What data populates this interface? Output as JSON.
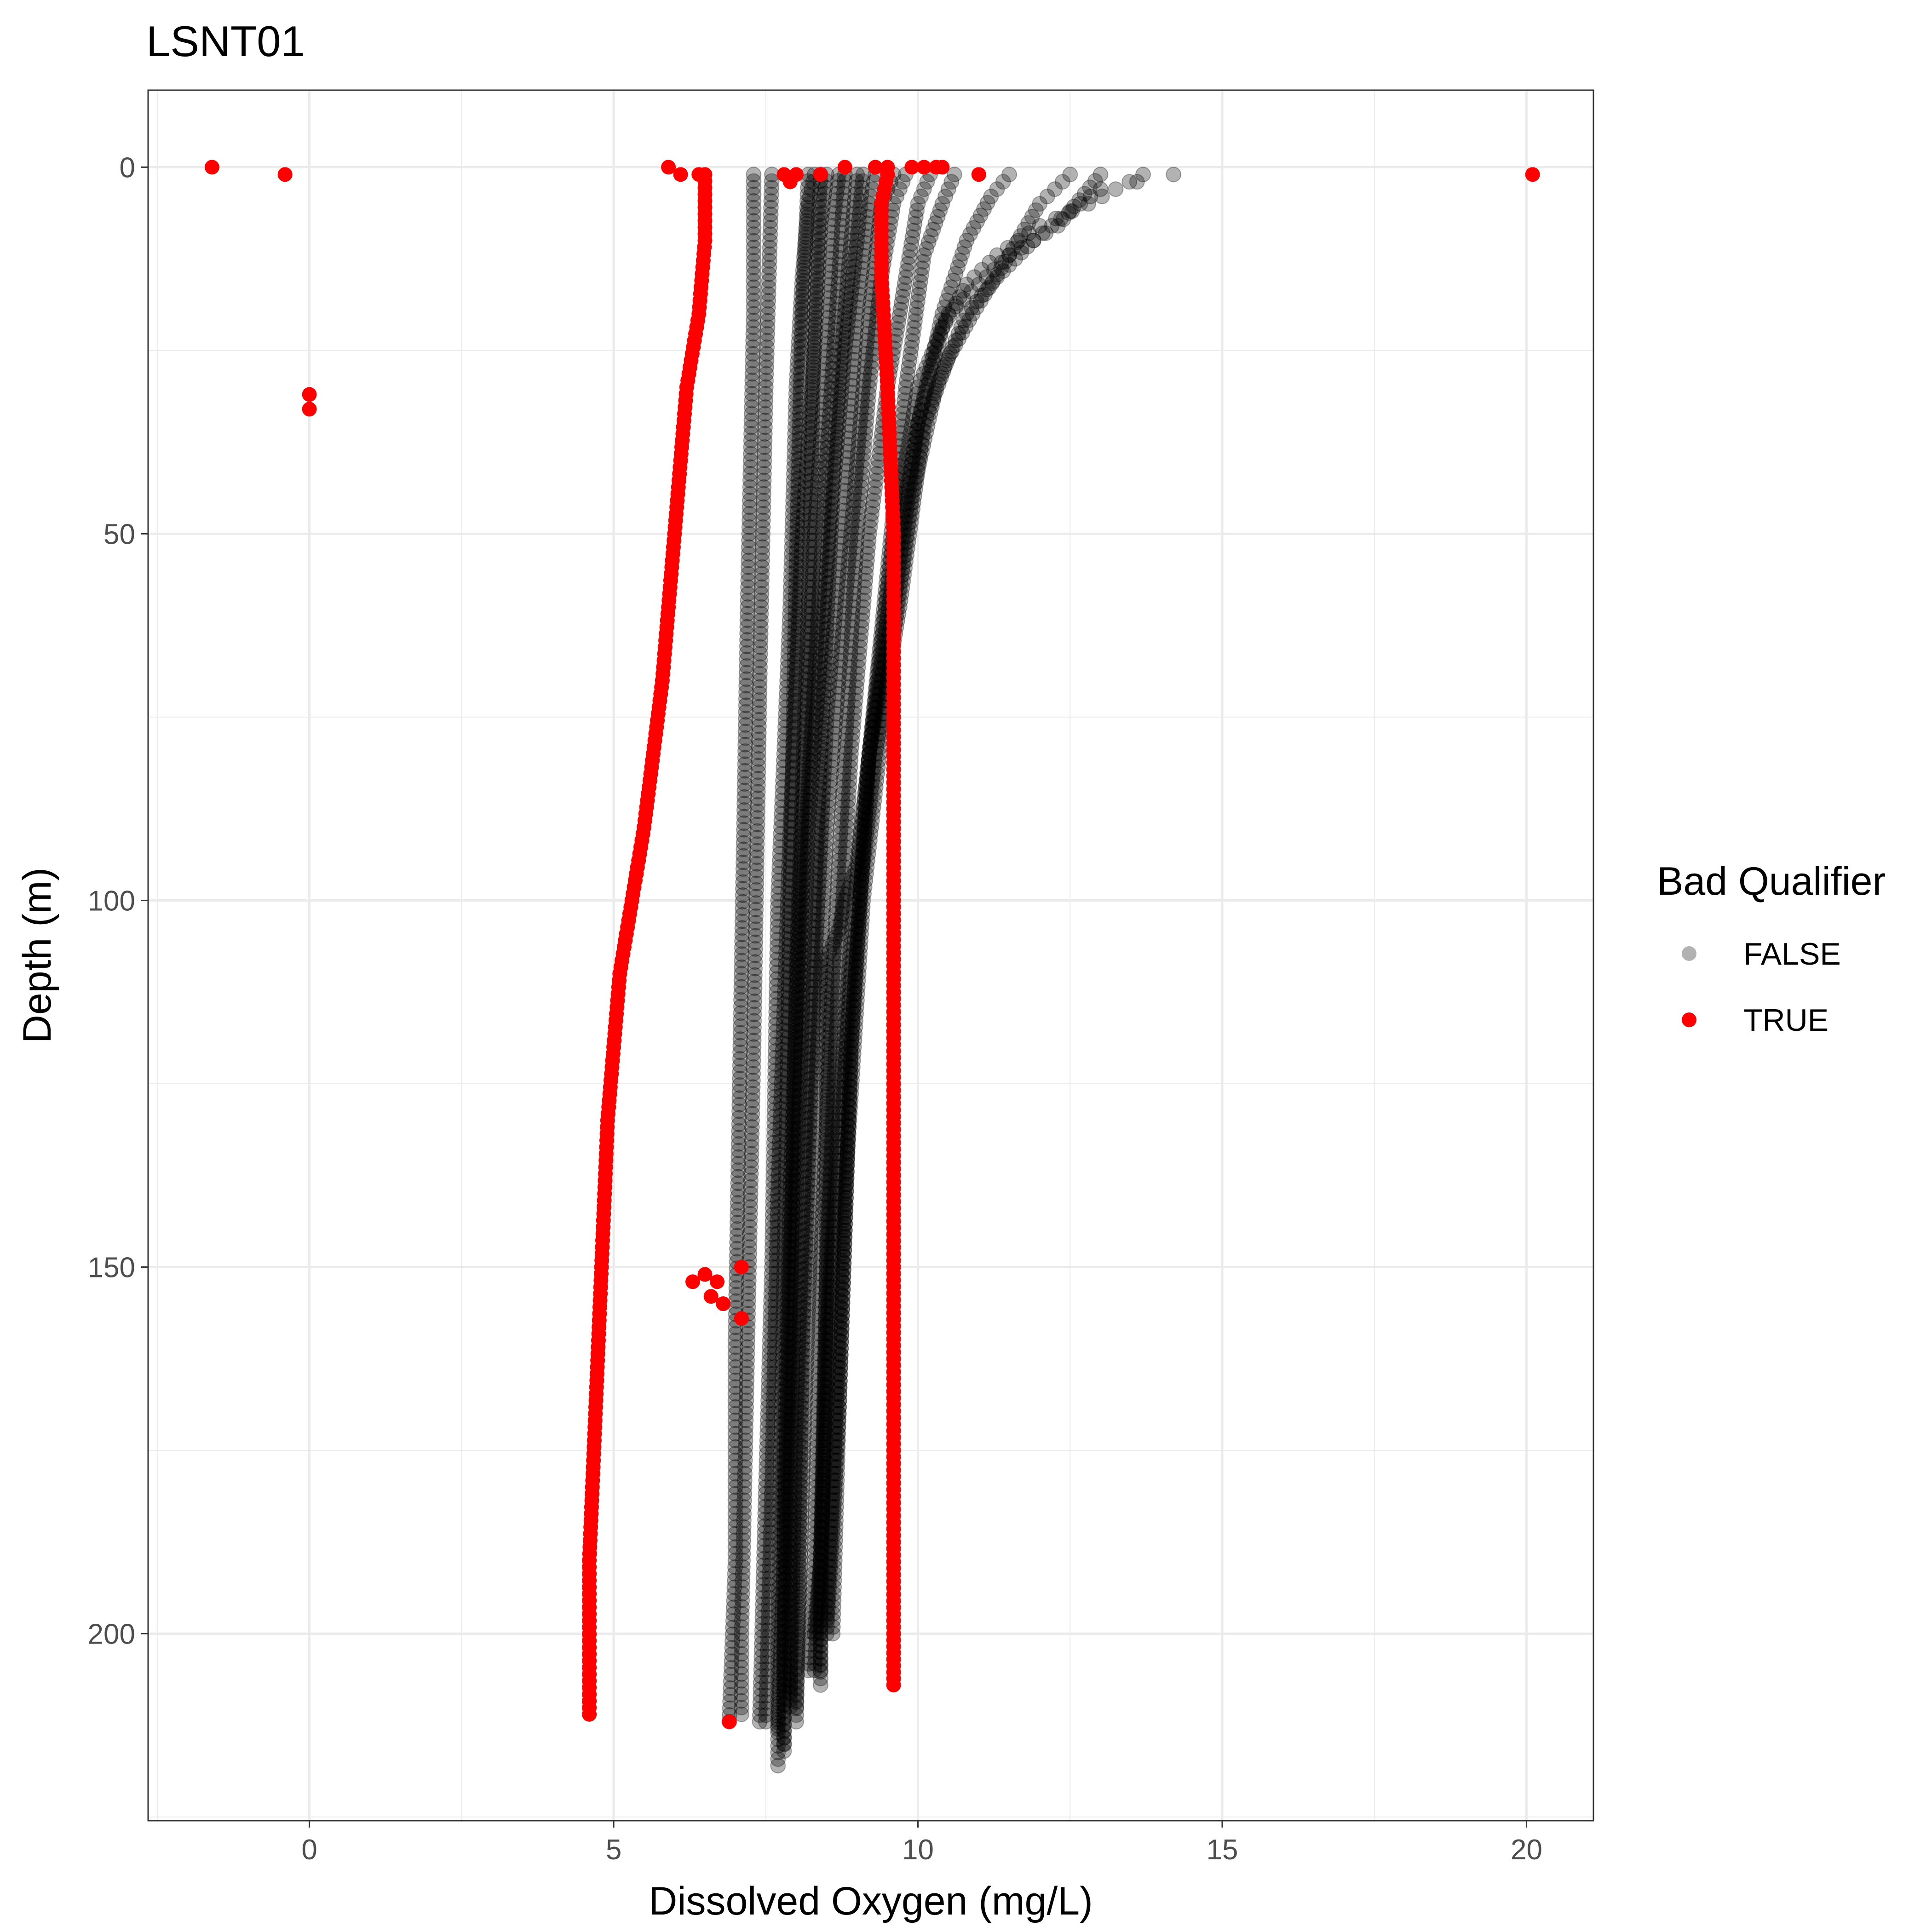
{
  "chart_data": {
    "type": "scatter",
    "title": "LSNT01",
    "xlabel": "Dissolved Oxygen (mg/L)",
    "ylabel": "Depth (m)",
    "xlim": [
      -2.65,
      21.1
    ],
    "ylim": [
      225.5,
      -10.5
    ],
    "y_reversed": true,
    "x_ticks": [
      0,
      5,
      10,
      15,
      20
    ],
    "x_tick_labels": [
      "0",
      "5",
      "10",
      "15",
      "20"
    ],
    "y_ticks": [
      0,
      50,
      100,
      150,
      200
    ],
    "y_tick_labels": [
      "0",
      "50",
      "100",
      "150",
      "200"
    ],
    "grid": true,
    "legend": {
      "title": "Bad Qualifier",
      "placement": "right",
      "entries": [
        {
          "label": "FALSE",
          "color": "#000000",
          "opacity": 0.3
        },
        {
          "label": "TRUE",
          "color": "#ff0000",
          "opacity": 1.0
        }
      ]
    },
    "colors": {
      "false": "#000000",
      "true": "#ff0000"
    },
    "series": [
      {
        "name": "FALSE",
        "profiles": [
          [
            [
              8.3,
              1
            ],
            [
              8.2,
              5
            ],
            [
              8.1,
              15
            ],
            [
              8.0,
              30
            ],
            [
              7.9,
              60
            ],
            [
              7.7,
              100
            ],
            [
              7.6,
              150
            ],
            [
              7.5,
              180
            ],
            [
              7.4,
              212
            ]
          ],
          [
            [
              8.5,
              1
            ],
            [
              8.4,
              8
            ],
            [
              8.3,
              25
            ],
            [
              8.1,
              50
            ],
            [
              7.9,
              90
            ],
            [
              7.7,
              140
            ],
            [
              7.6,
              180
            ],
            [
              7.5,
              212
            ]
          ],
          [
            [
              8.7,
              1
            ],
            [
              8.6,
              8
            ],
            [
              8.5,
              25
            ],
            [
              8.3,
              50
            ],
            [
              8.1,
              90
            ],
            [
              7.9,
              140
            ],
            [
              7.8,
              180
            ],
            [
              7.8,
              215
            ]
          ],
          [
            [
              8.8,
              1
            ],
            [
              8.7,
              15
            ],
            [
              8.5,
              40
            ],
            [
              8.3,
              70
            ],
            [
              8.1,
              100
            ],
            [
              7.9,
              150
            ],
            [
              7.8,
              190
            ],
            [
              7.7,
              213
            ]
          ],
          [
            [
              9.0,
              1
            ],
            [
              8.9,
              10
            ],
            [
              8.7,
              30
            ],
            [
              8.5,
              55
            ],
            [
              8.2,
              90
            ],
            [
              8.0,
              140
            ],
            [
              7.9,
              180
            ],
            [
              7.9,
              210
            ]
          ],
          [
            [
              9.1,
              1
            ],
            [
              9.0,
              10
            ],
            [
              8.8,
              25
            ],
            [
              8.6,
              45
            ],
            [
              8.4,
              80
            ],
            [
              8.2,
              120
            ],
            [
              8.0,
              170
            ],
            [
              7.9,
              208
            ]
          ],
          [
            [
              9.3,
              1
            ],
            [
              9.2,
              5
            ],
            [
              9.0,
              20
            ],
            [
              8.8,
              45
            ],
            [
              8.5,
              75
            ],
            [
              8.3,
              110
            ],
            [
              8.1,
              160
            ],
            [
              8.0,
              212
            ]
          ],
          [
            [
              9.6,
              1
            ],
            [
              9.4,
              5
            ],
            [
              9.2,
              20
            ],
            [
              9.0,
              40
            ],
            [
              8.8,
              60
            ],
            [
              8.5,
              90
            ],
            [
              8.3,
              130
            ],
            [
              8.1,
              180
            ],
            [
              8.0,
              210
            ]
          ],
          [
            [
              9.8,
              1
            ],
            [
              9.6,
              5
            ],
            [
              9.4,
              15
            ],
            [
              9.2,
              30
            ],
            [
              9.0,
              50
            ],
            [
              8.8,
              80
            ],
            [
              8.6,
              110
            ],
            [
              8.4,
              150
            ],
            [
              8.3,
              190
            ],
            [
              8.2,
              205
            ]
          ],
          [
            [
              10.2,
              1
            ],
            [
              10.0,
              5
            ],
            [
              9.8,
              15
            ],
            [
              9.5,
              30
            ],
            [
              9.2,
              50
            ],
            [
              8.9,
              80
            ],
            [
              8.7,
              110
            ],
            [
              8.5,
              150
            ],
            [
              8.4,
              190
            ],
            [
              8.3,
              200
            ]
          ],
          [
            [
              10.6,
              1
            ],
            [
              10.4,
              5
            ],
            [
              10.1,
              12
            ],
            [
              9.8,
              30
            ],
            [
              9.5,
              55
            ],
            [
              9.2,
              80
            ],
            [
              8.9,
              105
            ],
            [
              8.7,
              130
            ],
            [
              8.5,
              160
            ],
            [
              8.4,
              190
            ],
            [
              8.4,
              207
            ]
          ],
          [
            [
              11.5,
              1
            ],
            [
              11.2,
              4
            ],
            [
              10.8,
              10
            ],
            [
              10.4,
              20
            ],
            [
              10.0,
              35
            ],
            [
              9.6,
              60
            ],
            [
              9.2,
              80
            ],
            [
              9.0,
              95
            ],
            [
              8.8,
              100
            ],
            [
              8.7,
              104
            ],
            [
              8.5,
              108
            ],
            [
              8.5,
              150
            ],
            [
              8.4,
              200
            ],
            [
              8.4,
              205
            ]
          ],
          [
            [
              12.5,
              1
            ],
            [
              12.0,
              5
            ],
            [
              11.5,
              12
            ],
            [
              10.9,
              20
            ],
            [
              10.5,
              26
            ],
            [
              10.1,
              35
            ],
            [
              9.7,
              60
            ],
            [
              9.3,
              80
            ],
            [
              8.9,
              110
            ],
            [
              8.6,
              150
            ],
            [
              8.4,
              190
            ],
            [
              8.3,
              205
            ]
          ],
          [
            [
              13.0,
              1
            ],
            [
              12.3,
              8
            ],
            [
              11.5,
              12
            ],
            [
              11.0,
              16
            ],
            [
              10.5,
              20
            ],
            [
              10.0,
              30
            ],
            [
              9.6,
              50
            ],
            [
              9.2,
              80
            ],
            [
              8.9,
              120
            ],
            [
              8.7,
              170
            ],
            [
              8.6,
              200
            ]
          ],
          [
            [
              13.7,
              1
            ],
            [
              12.8,
              5
            ],
            [
              12.0,
              8
            ],
            [
              11.3,
              12
            ],
            [
              10.8,
              16
            ],
            [
              10.4,
              22
            ],
            [
              10.0,
              35
            ],
            [
              9.6,
              55
            ],
            [
              9.2,
              80
            ],
            [
              8.9,
              120
            ],
            [
              8.7,
              170
            ],
            [
              8.5,
              200
            ]
          ],
          [
            [
              14.2,
              1
            ],
            [
              13.0,
              3
            ],
            [
              12.5,
              6
            ],
            [
              11.9,
              10
            ],
            [
              11.3,
              15
            ],
            [
              10.8,
              20
            ],
            [
              10.3,
              30
            ],
            [
              9.9,
              45
            ],
            [
              9.5,
              70
            ],
            [
              9.1,
              100
            ],
            [
              8.8,
              140
            ],
            [
              8.6,
              180
            ],
            [
              8.5,
              198
            ]
          ],
          [
            [
              7.3,
              1
            ],
            [
              7.3,
              20
            ],
            [
              7.2,
              60
            ],
            [
              7.1,
              110
            ],
            [
              7.0,
              160
            ],
            [
              7.0,
              190
            ],
            [
              6.9,
              212
            ]
          ],
          [
            [
              7.6,
              1
            ],
            [
              7.5,
              30
            ],
            [
              7.4,
              70
            ],
            [
              7.3,
              120
            ],
            [
              7.2,
              160
            ],
            [
              7.1,
              200
            ],
            [
              7.1,
              211
            ]
          ],
          [
            [
              8.2,
              1
            ],
            [
              8.1,
              20
            ],
            [
              8.0,
              55
            ],
            [
              7.9,
              100
            ],
            [
              7.8,
              150
            ],
            [
              7.7,
              200
            ],
            [
              7.7,
              218
            ]
          ],
          [
            [
              8.4,
              1
            ],
            [
              8.3,
              20
            ],
            [
              8.2,
              60
            ],
            [
              8.0,
              110
            ],
            [
              7.9,
              160
            ],
            [
              7.8,
              200
            ],
            [
              7.8,
              216
            ]
          ]
        ]
      },
      {
        "name": "TRUE",
        "profiles": [
          [
            [
              6.5,
              1
            ],
            [
              6.5,
              10
            ],
            [
              6.4,
              20
            ],
            [
              6.2,
              30
            ],
            [
              6.0,
              50
            ],
            [
              5.8,
              70
            ],
            [
              5.5,
              90
            ],
            [
              5.3,
              100
            ],
            [
              5.1,
              110
            ],
            [
              4.9,
              130
            ],
            [
              4.8,
              150
            ],
            [
              4.7,
              170
            ],
            [
              4.6,
              190
            ],
            [
              4.6,
              211
            ]
          ],
          [
            [
              9.5,
              1
            ],
            [
              9.4,
              5
            ],
            [
              9.4,
              15
            ],
            [
              9.5,
              30
            ],
            [
              9.6,
              50
            ],
            [
              9.6,
              100
            ],
            [
              9.6,
              150
            ],
            [
              9.6,
              200
            ],
            [
              9.6,
              207
            ]
          ]
        ],
        "points": [
          [
            -1.6,
            0
          ],
          [
            -0.4,
            1
          ],
          [
            0,
            31
          ],
          [
            0,
            33
          ],
          [
            20.1,
            1
          ],
          [
            5.9,
            0
          ],
          [
            6.1,
            1
          ],
          [
            6.4,
            1
          ],
          [
            7.8,
            1
          ],
          [
            7.9,
            2
          ],
          [
            8.0,
            1
          ],
          [
            8.4,
            1
          ],
          [
            8.8,
            0
          ],
          [
            9.3,
            0
          ],
          [
            9.5,
            0
          ],
          [
            9.9,
            0
          ],
          [
            10.1,
            0
          ],
          [
            10.3,
            0
          ],
          [
            10.4,
            0
          ],
          [
            11.0,
            1
          ],
          [
            6.3,
            152
          ],
          [
            6.5,
            151
          ],
          [
            6.7,
            152
          ],
          [
            6.8,
            155
          ],
          [
            6.6,
            154
          ],
          [
            7.1,
            150
          ],
          [
            7.1,
            157
          ],
          [
            6.9,
            212
          ]
        ]
      }
    ]
  }
}
